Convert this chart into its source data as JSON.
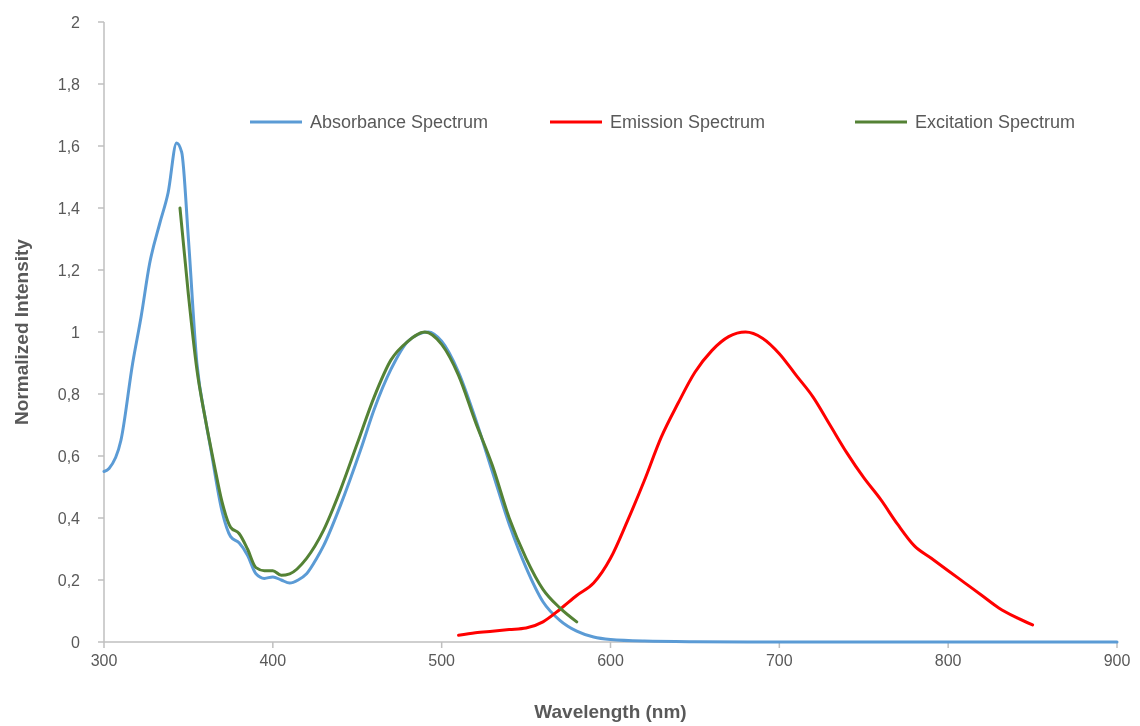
{
  "chart_data": {
    "type": "line",
    "xlabel": "Wavelength (nm)",
    "ylabel": "Normalized Intensity",
    "xlim": [
      300,
      900
    ],
    "ylim": [
      0,
      2
    ],
    "xticks": [
      300,
      400,
      500,
      600,
      700,
      800,
      900
    ],
    "yticks": [
      0,
      {
        "value": 0.2,
        "label": "0,2"
      },
      {
        "value": 0.4,
        "label": "0,4"
      },
      {
        "value": 0.6,
        "label": "0,6"
      },
      {
        "value": 0.8,
        "label": "0,8"
      },
      1,
      {
        "value": 1.2,
        "label": "1,2"
      },
      {
        "value": 1.4,
        "label": "1,4"
      },
      {
        "value": 1.6,
        "label": "1,6"
      },
      {
        "value": 1.8,
        "label": "1,8"
      },
      2
    ],
    "legend": "top right",
    "grid": false,
    "marker": "none",
    "line_style": "solid",
    "series": [
      {
        "name": "Absorbance Spectrum",
        "color": "#5b9bd5",
        "x": [
          300,
          303,
          310,
          317,
          322,
          327,
          333,
          338,
          343,
          346,
          350,
          355,
          360,
          363,
          370,
          375,
          380,
          385,
          390,
          395,
          400,
          405,
          410,
          415,
          420,
          426,
          430,
          440,
          452,
          460,
          470,
          480,
          492,
          500,
          510,
          520,
          530,
          540,
          550,
          560,
          570,
          580,
          590,
          600,
          620,
          650,
          700,
          800,
          900
        ],
        "values": [
          0.55,
          0.56,
          0.65,
          0.9,
          1.05,
          1.22,
          1.35,
          1.45,
          1.61,
          1.58,
          1.3,
          0.9,
          0.72,
          0.63,
          0.42,
          0.34,
          0.32,
          0.28,
          0.22,
          0.205,
          0.21,
          0.2,
          0.19,
          0.2,
          0.22,
          0.27,
          0.31,
          0.44,
          0.62,
          0.75,
          0.88,
          0.97,
          1.0,
          0.97,
          0.87,
          0.72,
          0.55,
          0.38,
          0.24,
          0.13,
          0.07,
          0.035,
          0.016,
          0.008,
          0.003,
          0.001,
          0,
          0,
          0
        ]
      },
      {
        "name": "Emission Spectrum",
        "color": "#ff0000",
        "x": [
          510,
          520,
          530,
          540,
          550,
          560,
          570,
          580,
          590,
          600,
          610,
          620,
          630,
          640,
          650,
          660,
          670,
          680,
          690,
          700,
          710,
          720,
          730,
          740,
          750,
          760,
          770,
          780,
          790,
          800,
          810,
          820,
          830,
          840,
          850
        ],
        "values": [
          0.022,
          0.03,
          0.035,
          0.04,
          0.045,
          0.065,
          0.105,
          0.15,
          0.19,
          0.27,
          0.39,
          0.52,
          0.66,
          0.77,
          0.87,
          0.94,
          0.985,
          1.0,
          0.98,
          0.93,
          0.86,
          0.79,
          0.7,
          0.61,
          0.53,
          0.46,
          0.38,
          0.31,
          0.27,
          0.23,
          0.19,
          0.15,
          0.11,
          0.08,
          0.055
        ]
      },
      {
        "name": "Excitation Spectrum",
        "color": "#548235",
        "x": [
          345,
          350,
          355,
          360,
          365,
          370,
          375,
          380,
          385,
          390,
          395,
          400,
          405,
          410,
          420,
          430,
          440,
          450,
          460,
          470,
          480,
          490,
          500,
          510,
          520,
          530,
          540,
          550,
          560,
          570,
          580
        ],
        "values": [
          1.4,
          1.12,
          0.88,
          0.72,
          0.58,
          0.45,
          0.37,
          0.35,
          0.3,
          0.24,
          0.23,
          0.23,
          0.215,
          0.22,
          0.27,
          0.36,
          0.49,
          0.64,
          0.79,
          0.91,
          0.97,
          1.0,
          0.96,
          0.86,
          0.71,
          0.57,
          0.4,
          0.27,
          0.17,
          0.11,
          0.065
        ]
      }
    ]
  }
}
